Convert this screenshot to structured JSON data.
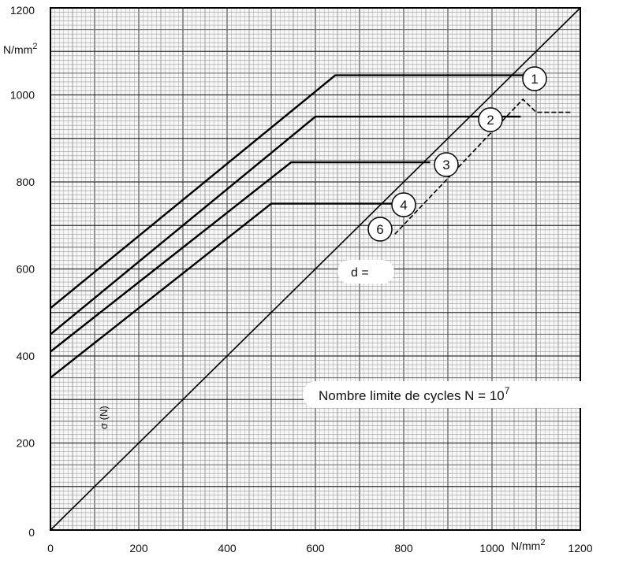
{
  "chart_data": {
    "type": "line",
    "xlim": [
      0,
      1200
    ],
    "ylim": [
      0,
      1200
    ],
    "x_ticks": [
      "0",
      "200",
      "400",
      "600",
      "800",
      "1000",
      "1200"
    ],
    "y_ticks": [
      "0",
      "200",
      "400",
      "600",
      "800",
      "1000",
      "1200"
    ],
    "x_unit": "N/mm",
    "x_unit_sup": "2",
    "y_unit": "N/mm",
    "y_unit_sup": "2",
    "grid": true,
    "series": [
      {
        "name": "1",
        "points": [
          [
            0,
            510
          ],
          [
            645,
            1045
          ],
          [
            1120,
            1045
          ]
        ]
      },
      {
        "name": "2",
        "points": [
          [
            0,
            450
          ],
          [
            600,
            950
          ],
          [
            1065,
            950
          ]
        ]
      },
      {
        "name": "3",
        "points": [
          [
            0,
            410
          ],
          [
            545,
            845
          ],
          [
            860,
            845
          ]
        ]
      },
      {
        "name": "4",
        "points": [
          [
            0,
            350
          ],
          [
            500,
            750
          ],
          [
            820,
            750
          ]
        ]
      },
      {
        "name": "",
        "points": [
          [
            0,
            0
          ],
          [
            1200,
            1200
          ]
        ]
      }
    ],
    "limit_line": {
      "points": [
        [
          780,
          680
        ],
        [
          1070,
          990
        ],
        [
          1100,
          960
        ],
        [
          1180,
          960
        ]
      ]
    },
    "annotations": {
      "d_label": "d =",
      "cycles_text": "Nombre limite de cycles N = 10",
      "cycles_exponent": "7",
      "vertical_label": "σ (N)",
      "curve_labels": [
        "1",
        "2",
        "3",
        "4",
        "6"
      ]
    }
  }
}
